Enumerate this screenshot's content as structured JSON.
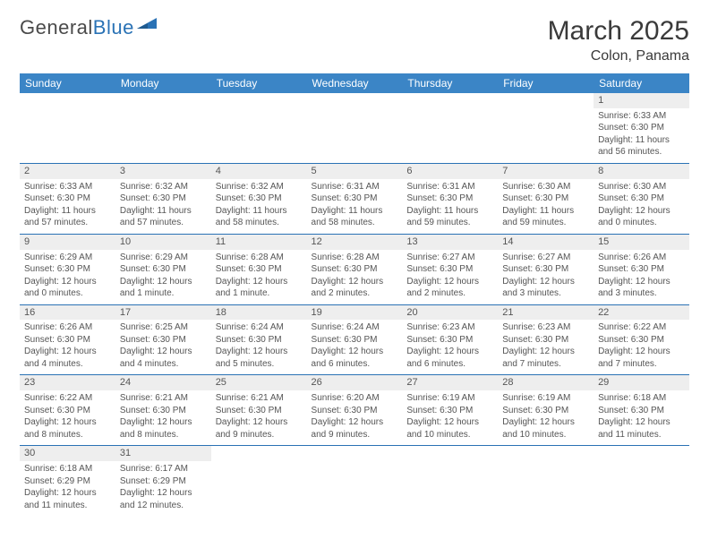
{
  "logo": {
    "part1": "General",
    "part2": "Blue"
  },
  "title": "March 2025",
  "subtitle": "Colon, Panama",
  "days_of_week": [
    "Sunday",
    "Monday",
    "Tuesday",
    "Wednesday",
    "Thursday",
    "Friday",
    "Saturday"
  ],
  "colors": {
    "header_bg": "#3b85c6",
    "header_text": "#ffffff",
    "row_divider": "#2a72b5",
    "daynum_bg": "#eeeeee",
    "text": "#555555",
    "logo_blue": "#2a72b5"
  },
  "weeks": [
    [
      null,
      null,
      null,
      null,
      null,
      null,
      {
        "n": "1",
        "sunrise": "Sunrise: 6:33 AM",
        "sunset": "Sunset: 6:30 PM",
        "daylight": "Daylight: 11 hours and 56 minutes."
      }
    ],
    [
      {
        "n": "2",
        "sunrise": "Sunrise: 6:33 AM",
        "sunset": "Sunset: 6:30 PM",
        "daylight": "Daylight: 11 hours and 57 minutes."
      },
      {
        "n": "3",
        "sunrise": "Sunrise: 6:32 AM",
        "sunset": "Sunset: 6:30 PM",
        "daylight": "Daylight: 11 hours and 57 minutes."
      },
      {
        "n": "4",
        "sunrise": "Sunrise: 6:32 AM",
        "sunset": "Sunset: 6:30 PM",
        "daylight": "Daylight: 11 hours and 58 minutes."
      },
      {
        "n": "5",
        "sunrise": "Sunrise: 6:31 AM",
        "sunset": "Sunset: 6:30 PM",
        "daylight": "Daylight: 11 hours and 58 minutes."
      },
      {
        "n": "6",
        "sunrise": "Sunrise: 6:31 AM",
        "sunset": "Sunset: 6:30 PM",
        "daylight": "Daylight: 11 hours and 59 minutes."
      },
      {
        "n": "7",
        "sunrise": "Sunrise: 6:30 AM",
        "sunset": "Sunset: 6:30 PM",
        "daylight": "Daylight: 11 hours and 59 minutes."
      },
      {
        "n": "8",
        "sunrise": "Sunrise: 6:30 AM",
        "sunset": "Sunset: 6:30 PM",
        "daylight": "Daylight: 12 hours and 0 minutes."
      }
    ],
    [
      {
        "n": "9",
        "sunrise": "Sunrise: 6:29 AM",
        "sunset": "Sunset: 6:30 PM",
        "daylight": "Daylight: 12 hours and 0 minutes."
      },
      {
        "n": "10",
        "sunrise": "Sunrise: 6:29 AM",
        "sunset": "Sunset: 6:30 PM",
        "daylight": "Daylight: 12 hours and 1 minute."
      },
      {
        "n": "11",
        "sunrise": "Sunrise: 6:28 AM",
        "sunset": "Sunset: 6:30 PM",
        "daylight": "Daylight: 12 hours and 1 minute."
      },
      {
        "n": "12",
        "sunrise": "Sunrise: 6:28 AM",
        "sunset": "Sunset: 6:30 PM",
        "daylight": "Daylight: 12 hours and 2 minutes."
      },
      {
        "n": "13",
        "sunrise": "Sunrise: 6:27 AM",
        "sunset": "Sunset: 6:30 PM",
        "daylight": "Daylight: 12 hours and 2 minutes."
      },
      {
        "n": "14",
        "sunrise": "Sunrise: 6:27 AM",
        "sunset": "Sunset: 6:30 PM",
        "daylight": "Daylight: 12 hours and 3 minutes."
      },
      {
        "n": "15",
        "sunrise": "Sunrise: 6:26 AM",
        "sunset": "Sunset: 6:30 PM",
        "daylight": "Daylight: 12 hours and 3 minutes."
      }
    ],
    [
      {
        "n": "16",
        "sunrise": "Sunrise: 6:26 AM",
        "sunset": "Sunset: 6:30 PM",
        "daylight": "Daylight: 12 hours and 4 minutes."
      },
      {
        "n": "17",
        "sunrise": "Sunrise: 6:25 AM",
        "sunset": "Sunset: 6:30 PM",
        "daylight": "Daylight: 12 hours and 4 minutes."
      },
      {
        "n": "18",
        "sunrise": "Sunrise: 6:24 AM",
        "sunset": "Sunset: 6:30 PM",
        "daylight": "Daylight: 12 hours and 5 minutes."
      },
      {
        "n": "19",
        "sunrise": "Sunrise: 6:24 AM",
        "sunset": "Sunset: 6:30 PM",
        "daylight": "Daylight: 12 hours and 6 minutes."
      },
      {
        "n": "20",
        "sunrise": "Sunrise: 6:23 AM",
        "sunset": "Sunset: 6:30 PM",
        "daylight": "Daylight: 12 hours and 6 minutes."
      },
      {
        "n": "21",
        "sunrise": "Sunrise: 6:23 AM",
        "sunset": "Sunset: 6:30 PM",
        "daylight": "Daylight: 12 hours and 7 minutes."
      },
      {
        "n": "22",
        "sunrise": "Sunrise: 6:22 AM",
        "sunset": "Sunset: 6:30 PM",
        "daylight": "Daylight: 12 hours and 7 minutes."
      }
    ],
    [
      {
        "n": "23",
        "sunrise": "Sunrise: 6:22 AM",
        "sunset": "Sunset: 6:30 PM",
        "daylight": "Daylight: 12 hours and 8 minutes."
      },
      {
        "n": "24",
        "sunrise": "Sunrise: 6:21 AM",
        "sunset": "Sunset: 6:30 PM",
        "daylight": "Daylight: 12 hours and 8 minutes."
      },
      {
        "n": "25",
        "sunrise": "Sunrise: 6:21 AM",
        "sunset": "Sunset: 6:30 PM",
        "daylight": "Daylight: 12 hours and 9 minutes."
      },
      {
        "n": "26",
        "sunrise": "Sunrise: 6:20 AM",
        "sunset": "Sunset: 6:30 PM",
        "daylight": "Daylight: 12 hours and 9 minutes."
      },
      {
        "n": "27",
        "sunrise": "Sunrise: 6:19 AM",
        "sunset": "Sunset: 6:30 PM",
        "daylight": "Daylight: 12 hours and 10 minutes."
      },
      {
        "n": "28",
        "sunrise": "Sunrise: 6:19 AM",
        "sunset": "Sunset: 6:30 PM",
        "daylight": "Daylight: 12 hours and 10 minutes."
      },
      {
        "n": "29",
        "sunrise": "Sunrise: 6:18 AM",
        "sunset": "Sunset: 6:30 PM",
        "daylight": "Daylight: 12 hours and 11 minutes."
      }
    ],
    [
      {
        "n": "30",
        "sunrise": "Sunrise: 6:18 AM",
        "sunset": "Sunset: 6:29 PM",
        "daylight": "Daylight: 12 hours and 11 minutes."
      },
      {
        "n": "31",
        "sunrise": "Sunrise: 6:17 AM",
        "sunset": "Sunset: 6:29 PM",
        "daylight": "Daylight: 12 hours and 12 minutes."
      },
      null,
      null,
      null,
      null,
      null
    ]
  ]
}
